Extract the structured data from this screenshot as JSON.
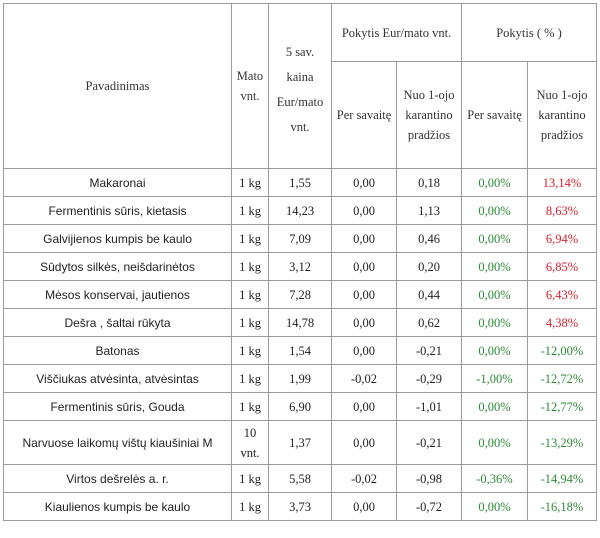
{
  "header": {
    "name": "Pavadinimas",
    "unit": "Mato vnt.",
    "price": "5 sav. kaina Eur/mato vnt.",
    "change_eur": "Pokytis Eur/mato vnt.",
    "change_pct": "Pokytis ( % )",
    "per_week": "Per savaitę",
    "since_quarantine": "Nuo 1-ojo karantino pradžios"
  },
  "rows": [
    {
      "name": "Makaronai",
      "unit": "1 kg",
      "price": "1,55",
      "eur_week": "0,00",
      "eur_q": "0,18",
      "pct_week": "0,00%",
      "pct_q": "13,14%",
      "dir": "up"
    },
    {
      "name": "Fermentinis sūris, kietasis",
      "unit": "1 kg",
      "price": "14,23",
      "eur_week": "0,00",
      "eur_q": "1,13",
      "pct_week": "0,00%",
      "pct_q": "8,63%",
      "dir": "up"
    },
    {
      "name": "Galvijienos kumpis be kaulo",
      "unit": "1 kg",
      "price": "7,09",
      "eur_week": "0,00",
      "eur_q": "0,46",
      "pct_week": "0,00%",
      "pct_q": "6,94%",
      "dir": "up"
    },
    {
      "name": "Sūdytos silkės, neišdarinėtos",
      "unit": "1 kg",
      "price": "3,12",
      "eur_week": "0,00",
      "eur_q": "0,20",
      "pct_week": "0,00%",
      "pct_q": "6,85%",
      "dir": "up"
    },
    {
      "name": "Mėsos konservai, jautienos",
      "unit": "1 kg",
      "price": "7,28",
      "eur_week": "0,00",
      "eur_q": "0,44",
      "pct_week": "0,00%",
      "pct_q": "6,43%",
      "dir": "up"
    },
    {
      "name": "Dešra , šaltai rūkyta",
      "unit": "1 kg",
      "price": "14,78",
      "eur_week": "0,00",
      "eur_q": "0,62",
      "pct_week": "0,00%",
      "pct_q": "4,38%",
      "dir": "up"
    },
    {
      "name": "Batonas",
      "unit": "1 kg",
      "price": "1,54",
      "eur_week": "0,00",
      "eur_q": "-0,21",
      "pct_week": "0,00%",
      "pct_q": "-12,00%",
      "dir": "down"
    },
    {
      "name": "Viščiukas atvėsinta, atvėsintas",
      "unit": "1 kg",
      "price": "1,99",
      "eur_week": "-0,02",
      "eur_q": "-0,29",
      "pct_week": "-1,00%",
      "pct_q": "-12,72%",
      "dir": "down"
    },
    {
      "name": "Fermentinis sūris, Gouda",
      "unit": "1 kg",
      "price": "6,90",
      "eur_week": "0,00",
      "eur_q": "-1,01",
      "pct_week": "0,00%",
      "pct_q": "-12,77%",
      "dir": "down"
    },
    {
      "name": "Narvuose laikomų vištų kiaušiniai M",
      "unit": "10 vnt.",
      "price": "1,37",
      "eur_week": "0,00",
      "eur_q": "-0,21",
      "pct_week": "0,00%",
      "pct_q": "-13,29%",
      "dir": "down",
      "tall": true
    },
    {
      "name": "Virtos dešrelės a. r.",
      "unit": "1 kg",
      "price": "5,58",
      "eur_week": "-0,02",
      "eur_q": "-0,98",
      "pct_week": "-0,36%",
      "pct_q": "-14,94%",
      "dir": "down"
    },
    {
      "name": "Kiaulienos kumpis be kaulo",
      "unit": "1 kg",
      "price": "3,73",
      "eur_week": "0,00",
      "eur_q": "-0,72",
      "pct_week": "0,00%",
      "pct_q": "-16,18%",
      "dir": "down"
    }
  ],
  "colors": {
    "increase": "#d41f2c",
    "decrease": "#2e8b3a",
    "border": "#9a9a9a"
  }
}
